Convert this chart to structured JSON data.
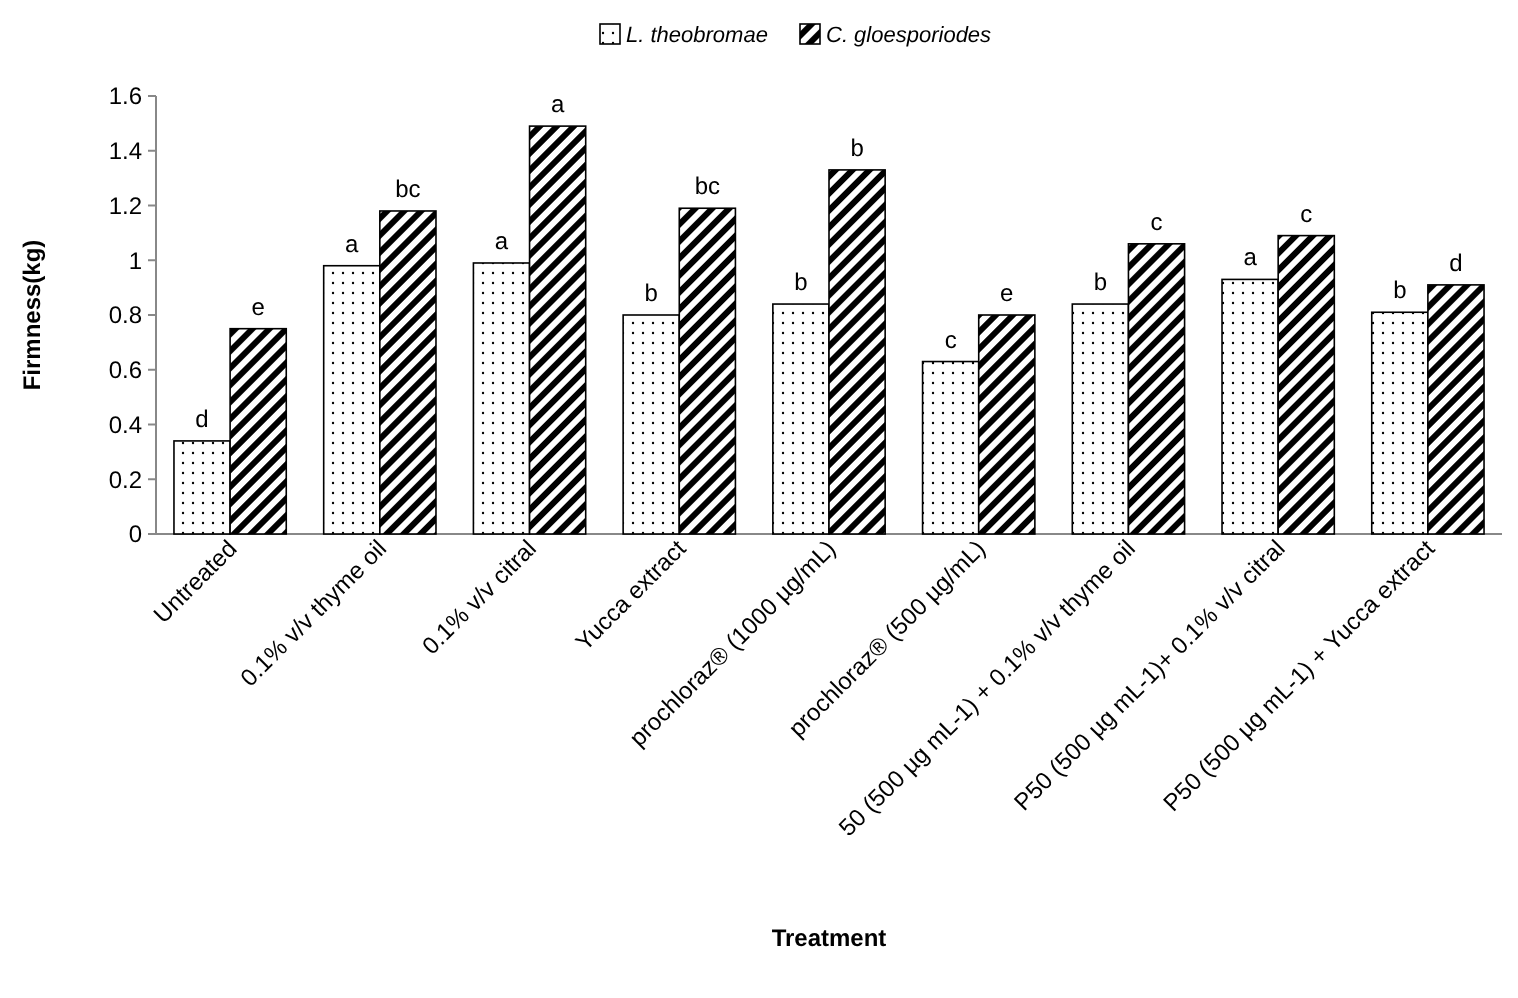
{
  "chart_data": {
    "type": "bar",
    "xlabel": "Treatment",
    "ylabel": "Firmness(kg)",
    "categories": [
      "Untreated",
      "0.1% v/v thyme oil",
      "0.1% v/v citral",
      "Yucca extract",
      "prochloraz® (1000 µg/mL)",
      "prochloraz® (500 µg/mL)",
      "50 (500 µg mL-1) + 0.1% v/v thyme oil",
      "P50 (500 µg mL-1)+ 0.1% v/v citral",
      "P50 (500 µg mL-1) + Yucca extract"
    ],
    "series": [
      {
        "name": "L. theobromae",
        "color": "#000000",
        "values": [
          0.34,
          0.98,
          0.99,
          0.8,
          0.84,
          0.63,
          0.84,
          0.93,
          0.81
        ]
      },
      {
        "name": "C. gloesporiodes",
        "color": "#000000",
        "values": [
          0.75,
          1.18,
          1.49,
          1.19,
          1.33,
          0.8,
          1.06,
          1.09,
          0.91
        ]
      }
    ],
    "ylim": [
      0,
      1.6
    ],
    "yticks": [
      0,
      0.2,
      0.4,
      0.6,
      0.8,
      1,
      1.2,
      1.4,
      1.6
    ],
    "legend": "top",
    "annotations": [
      {
        "text": "d",
        "x": "Untreated",
        "y": 0.34
      },
      {
        "text": "e",
        "x": "Untreated",
        "y": 0.75
      },
      {
        "text": "a",
        "x": "0.1% v/v thyme oil",
        "y": 0.98
      },
      {
        "text": "bc",
        "x": "0.1% v/v thyme oil",
        "y": 1.18
      },
      {
        "text": "a",
        "x": "0.1% v/v citral",
        "y": 0.99
      },
      {
        "text": "a",
        "x": "0.1% v/v citral",
        "y": 1.49
      },
      {
        "text": "b",
        "x": "Yucca extract",
        "y": 0.8
      },
      {
        "text": "bc",
        "x": "Yucca extract",
        "y": 1.19
      },
      {
        "text": "b",
        "x": "prochloraz® (1000 µg/mL)",
        "y": 0.84
      },
      {
        "text": "b",
        "x": "prochloraz® (1000 µg/mL)",
        "y": 1.33
      },
      {
        "text": "c",
        "x": "prochloraz® (500 µg/mL)",
        "y": 0.63
      },
      {
        "text": "e",
        "x": "prochloraz® (500 µg/mL)",
        "y": 0.8
      },
      {
        "text": "b",
        "x": "50 (500 µg mL-1) + 0.1% v/v thyme oil",
        "y": 0.84
      },
      {
        "text": "c",
        "x": "50 (500 µg mL-1) + 0.1% v/v thyme oil",
        "y": 1.06
      },
      {
        "text": "a",
        "x": "P50 (500 µg mL-1)+ 0.1% v/v citral",
        "y": 0.93
      },
      {
        "text": "c",
        "x": "P50 (500 µg mL-1)+ 0.1% v/v citral",
        "y": 1.09
      },
      {
        "text": "b",
        "x": "P50 (500 µg mL-1) + Yucca extract",
        "y": 0.81
      },
      {
        "text": "d",
        "x": "P50 (500 µg mL-1) + Yucca extract",
        "y": 0.91
      }
    ]
  }
}
